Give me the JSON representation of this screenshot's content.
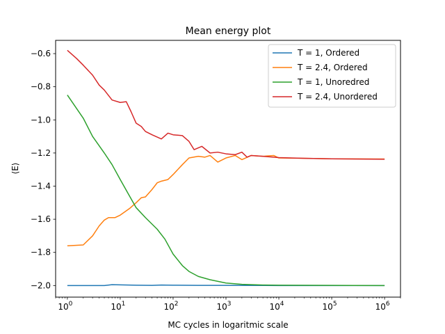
{
  "chart_data": {
    "type": "line",
    "title": "Mean energy plot",
    "xlabel": "MC cycles in logaritmic scale",
    "ylabel": "⟨E⟩",
    "x_scale": "log",
    "xlim": [
      0.6,
      2000000
    ],
    "ylim": [
      -2.07,
      -0.52
    ],
    "x_ticks": [
      {
        "value": 1,
        "base": "10",
        "exp": "0"
      },
      {
        "value": 10,
        "base": "10",
        "exp": "1"
      },
      {
        "value": 100,
        "base": "10",
        "exp": "2"
      },
      {
        "value": 1000,
        "base": "10",
        "exp": "3"
      },
      {
        "value": 10000,
        "base": "10",
        "exp": "4"
      },
      {
        "value": 100000,
        "base": "10",
        "exp": "5"
      },
      {
        "value": 1000000,
        "base": "10",
        "exp": "6"
      }
    ],
    "y_ticks": [
      {
        "value": -0.6,
        "label": "−0.6"
      },
      {
        "value": -0.8,
        "label": "−0.8"
      },
      {
        "value": -1.0,
        "label": "−1.0"
      },
      {
        "value": -1.2,
        "label": "−1.2"
      },
      {
        "value": -1.4,
        "label": "−1.4"
      },
      {
        "value": -1.6,
        "label": "−1.6"
      },
      {
        "value": -1.8,
        "label": "−1.8"
      },
      {
        "value": -2.0,
        "label": "−2.0"
      }
    ],
    "grid": false,
    "legend_position": "top-right",
    "series": [
      {
        "name": "T = 1, Ordered",
        "color": "#1f77b4",
        "points": [
          [
            1,
            -2.0
          ],
          [
            2,
            -2.0
          ],
          [
            5,
            -2.0
          ],
          [
            7,
            -1.995
          ],
          [
            10,
            -1.996
          ],
          [
            20,
            -1.998
          ],
          [
            40,
            -1.999
          ],
          [
            60,
            -1.997
          ],
          [
            100,
            -1.998
          ],
          [
            300,
            -1.999
          ],
          [
            1000,
            -1.999
          ],
          [
            10000,
            -2.0
          ],
          [
            100000,
            -2.0
          ],
          [
            1000000,
            -2.0
          ]
        ]
      },
      {
        "name": "T = 2.4, Ordered",
        "color": "#ff7f0e",
        "points": [
          [
            1,
            -1.76
          ],
          [
            2,
            -1.755
          ],
          [
            3,
            -1.7
          ],
          [
            4,
            -1.64
          ],
          [
            5,
            -1.605
          ],
          [
            6,
            -1.59
          ],
          [
            8,
            -1.59
          ],
          [
            10,
            -1.575
          ],
          [
            15,
            -1.535
          ],
          [
            20,
            -1.5
          ],
          [
            25,
            -1.47
          ],
          [
            30,
            -1.465
          ],
          [
            40,
            -1.42
          ],
          [
            50,
            -1.38
          ],
          [
            60,
            -1.37
          ],
          [
            80,
            -1.36
          ],
          [
            100,
            -1.33
          ],
          [
            150,
            -1.27
          ],
          [
            200,
            -1.23
          ],
          [
            300,
            -1.22
          ],
          [
            400,
            -1.225
          ],
          [
            500,
            -1.215
          ],
          [
            700,
            -1.255
          ],
          [
            1000,
            -1.23
          ],
          [
            1500,
            -1.215
          ],
          [
            2000,
            -1.24
          ],
          [
            3000,
            -1.215
          ],
          [
            5000,
            -1.22
          ],
          [
            8000,
            -1.215
          ],
          [
            10000,
            -1.23
          ],
          [
            30000,
            -1.232
          ],
          [
            100000,
            -1.235
          ],
          [
            1000000,
            -1.236
          ]
        ]
      },
      {
        "name": "T = 1, Unoredred",
        "color": "#2ca02c",
        "points": [
          [
            1,
            -0.85
          ],
          [
            2,
            -0.99
          ],
          [
            3,
            -1.1
          ],
          [
            5,
            -1.2
          ],
          [
            7,
            -1.27
          ],
          [
            10,
            -1.36
          ],
          [
            15,
            -1.46
          ],
          [
            20,
            -1.53
          ],
          [
            30,
            -1.59
          ],
          [
            50,
            -1.66
          ],
          [
            70,
            -1.72
          ],
          [
            100,
            -1.81
          ],
          [
            150,
            -1.88
          ],
          [
            200,
            -1.915
          ],
          [
            300,
            -1.945
          ],
          [
            500,
            -1.965
          ],
          [
            1000,
            -1.985
          ],
          [
            2000,
            -1.993
          ],
          [
            5000,
            -1.997
          ],
          [
            10000,
            -1.998
          ],
          [
            100000,
            -1.999
          ],
          [
            1000000,
            -2.0
          ]
        ]
      },
      {
        "name": "T = 2.4, Unordered",
        "color": "#d62728",
        "points": [
          [
            1,
            -0.58
          ],
          [
            1.5,
            -0.63
          ],
          [
            2,
            -0.67
          ],
          [
            3,
            -0.73
          ],
          [
            4,
            -0.79
          ],
          [
            5,
            -0.82
          ],
          [
            7,
            -0.88
          ],
          [
            10,
            -0.895
          ],
          [
            13,
            -0.89
          ],
          [
            16,
            -0.95
          ],
          [
            20,
            -1.02
          ],
          [
            25,
            -1.04
          ],
          [
            30,
            -1.07
          ],
          [
            40,
            -1.09
          ],
          [
            60,
            -1.115
          ],
          [
            80,
            -1.08
          ],
          [
            100,
            -1.09
          ],
          [
            150,
            -1.095
          ],
          [
            200,
            -1.13
          ],
          [
            250,
            -1.18
          ],
          [
            350,
            -1.16
          ],
          [
            500,
            -1.2
          ],
          [
            700,
            -1.195
          ],
          [
            1000,
            -1.205
          ],
          [
            1500,
            -1.21
          ],
          [
            2000,
            -1.195
          ],
          [
            2500,
            -1.225
          ],
          [
            3000,
            -1.215
          ],
          [
            5000,
            -1.22
          ],
          [
            10000,
            -1.228
          ],
          [
            30000,
            -1.232
          ],
          [
            100000,
            -1.235
          ],
          [
            1000000,
            -1.238
          ]
        ]
      }
    ]
  }
}
